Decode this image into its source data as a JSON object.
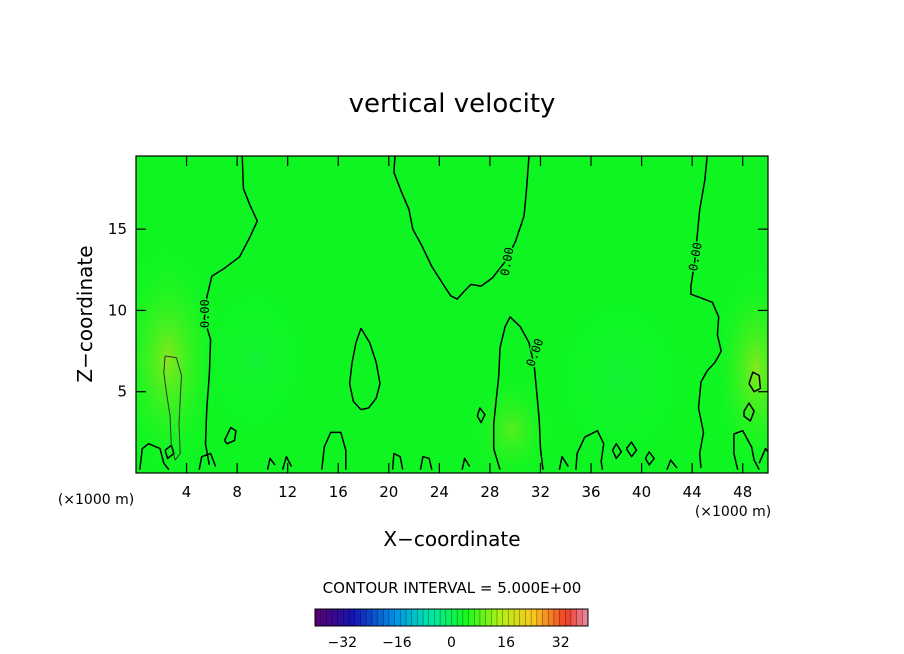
{
  "chart_data": {
    "type": "heatmap",
    "title": "vertical velocity",
    "xlabel": "X−coordinate",
    "ylabel": "Z−coordinate",
    "x_unit_left": "(×1000 m)",
    "x_unit_right": "(×1000 m)",
    "xlim": [
      0,
      50
    ],
    "ylim": [
      0,
      19.5
    ],
    "x_ticks": [
      4,
      8,
      12,
      16,
      20,
      24,
      28,
      32,
      36,
      40,
      44,
      48
    ],
    "y_ticks": [
      5,
      10,
      15
    ],
    "contour_interval_text": "CONTOUR INTERVAL = 5.000E+00",
    "contour_labels": [
      {
        "text": "0.00",
        "x": 5.5,
        "z": 9.8,
        "angle": -90
      },
      {
        "text": "0.00",
        "x": 29.4,
        "z": 13.0,
        "angle": -80
      },
      {
        "text": "0.00",
        "x": 31.6,
        "z": 7.4,
        "angle": -70
      },
      {
        "text": "0.00",
        "x": 44.3,
        "z": 13.3,
        "angle": -80
      }
    ],
    "zero_contours": [
      [
        [
          8.4,
          19.6
        ],
        [
          8.5,
          17.5
        ],
        [
          9.0,
          16.5
        ],
        [
          9.6,
          15.5
        ],
        [
          9.0,
          14.5
        ],
        [
          8.2,
          13.3
        ],
        [
          7.0,
          12.6
        ],
        [
          6.0,
          12.1
        ],
        [
          5.6,
          10.8
        ],
        [
          5.4,
          9.5
        ],
        [
          5.9,
          8.2
        ],
        [
          5.8,
          6.0
        ],
        [
          5.6,
          4.0
        ],
        [
          5.5,
          1.8
        ],
        [
          5.8,
          0.5
        ]
      ],
      [
        [
          20.5,
          19.6
        ],
        [
          20.4,
          18.5
        ],
        [
          21.0,
          17.3
        ],
        [
          21.6,
          16.2
        ],
        [
          21.9,
          15.0
        ],
        [
          22.6,
          14.0
        ],
        [
          23.4,
          12.7
        ],
        [
          24.3,
          11.6
        ],
        [
          24.9,
          10.9
        ],
        [
          25.4,
          10.7
        ],
        [
          26.0,
          11.2
        ],
        [
          26.5,
          11.6
        ],
        [
          27.3,
          11.5
        ],
        [
          28.2,
          12.0
        ],
        [
          29.2,
          13.0
        ],
        [
          30.0,
          14.2
        ],
        [
          30.7,
          15.8
        ],
        [
          30.9,
          17.5
        ],
        [
          31.1,
          19.6
        ]
      ],
      [
        [
          45.2,
          19.6
        ],
        [
          45.0,
          18.0
        ],
        [
          44.6,
          16.2
        ],
        [
          44.4,
          14.6
        ],
        [
          44.2,
          13.0
        ],
        [
          43.9,
          11.5
        ],
        [
          43.9,
          11.0
        ],
        [
          44.6,
          10.8
        ],
        [
          45.6,
          10.5
        ],
        [
          46.1,
          9.6
        ],
        [
          46.0,
          8.5
        ],
        [
          46.3,
          7.5
        ],
        [
          45.8,
          6.8
        ],
        [
          45.2,
          6.3
        ],
        [
          44.7,
          5.6
        ],
        [
          44.5,
          4.0
        ],
        [
          44.9,
          2.5
        ],
        [
          44.6,
          1.2
        ],
        [
          44.7,
          0.3
        ]
      ],
      [
        [
          17.8,
          8.9
        ],
        [
          18.5,
          8.0
        ],
        [
          19.0,
          6.8
        ],
        [
          19.3,
          5.5
        ],
        [
          19.0,
          4.6
        ],
        [
          18.4,
          4.0
        ],
        [
          17.8,
          3.9
        ],
        [
          17.2,
          4.4
        ],
        [
          16.9,
          5.5
        ],
        [
          17.1,
          6.8
        ],
        [
          17.4,
          8.0
        ],
        [
          17.8,
          8.9
        ]
      ],
      [
        [
          28.8,
          0.2
        ],
        [
          28.3,
          1.5
        ],
        [
          28.3,
          3.0
        ],
        [
          28.5,
          4.5
        ],
        [
          28.7,
          6.0
        ],
        [
          28.8,
          7.7
        ],
        [
          29.2,
          9.0
        ],
        [
          29.6,
          9.6
        ],
        [
          30.4,
          9.0
        ],
        [
          31.1,
          8.0
        ],
        [
          31.5,
          6.6
        ],
        [
          31.7,
          5.0
        ],
        [
          31.9,
          3.3
        ],
        [
          32.0,
          1.5
        ],
        [
          32.2,
          0.2
        ]
      ],
      [
        [
          34.8,
          0.2
        ],
        [
          34.9,
          1.2
        ],
        [
          35.5,
          2.2
        ],
        [
          36.5,
          2.6
        ],
        [
          37.0,
          1.8
        ],
        [
          36.8,
          0.7
        ],
        [
          36.9,
          0.2
        ]
      ],
      [
        [
          14.7,
          0.2
        ],
        [
          14.9,
          1.6
        ],
        [
          15.4,
          2.5
        ],
        [
          16.2,
          2.5
        ],
        [
          16.6,
          1.4
        ],
        [
          16.6,
          0.2
        ]
      ],
      [
        [
          0.3,
          0.2
        ],
        [
          0.5,
          1.5
        ],
        [
          1.0,
          1.8
        ],
        [
          1.9,
          1.5
        ],
        [
          2.2,
          0.6
        ],
        [
          2.6,
          0.2
        ]
      ],
      [
        [
          5.0,
          0.2
        ],
        [
          5.2,
          1.0
        ],
        [
          5.9,
          1.2
        ],
        [
          6.3,
          0.4
        ]
      ],
      [
        [
          7.0,
          2.0
        ],
        [
          7.5,
          2.8
        ],
        [
          7.9,
          2.6
        ],
        [
          7.8,
          2.0
        ],
        [
          7.2,
          1.8
        ],
        [
          7.0,
          2.0
        ]
      ],
      [
        [
          47.6,
          0.2
        ],
        [
          47.3,
          1.2
        ],
        [
          47.3,
          2.4
        ],
        [
          48.0,
          2.6
        ],
        [
          48.7,
          1.6
        ],
        [
          48.9,
          0.8
        ],
        [
          49.3,
          0.2
        ]
      ],
      [
        [
          49.3,
          0.6
        ],
        [
          49.8,
          1.5
        ],
        [
          50.0,
          1.3
        ]
      ],
      [
        [
          48.5,
          5.5
        ],
        [
          48.8,
          6.2
        ],
        [
          49.3,
          6.0
        ],
        [
          49.4,
          5.2
        ],
        [
          48.9,
          5.0
        ],
        [
          48.5,
          5.5
        ]
      ],
      [
        [
          48.1,
          3.8
        ],
        [
          48.5,
          4.3
        ],
        [
          48.9,
          3.8
        ],
        [
          48.6,
          3.2
        ],
        [
          48.1,
          3.5
        ],
        [
          48.1,
          3.8
        ]
      ],
      [
        [
          27.0,
          3.5
        ],
        [
          27.2,
          4.0
        ],
        [
          27.6,
          3.6
        ],
        [
          27.3,
          3.1
        ],
        [
          27.0,
          3.5
        ]
      ],
      [
        [
          37.7,
          1.4
        ],
        [
          38.0,
          1.8
        ],
        [
          38.4,
          1.3
        ],
        [
          38.0,
          0.9
        ],
        [
          37.7,
          1.4
        ]
      ],
      [
        [
          38.8,
          1.5
        ],
        [
          39.2,
          1.9
        ],
        [
          39.6,
          1.4
        ],
        [
          39.2,
          1.0
        ],
        [
          38.8,
          1.5
        ]
      ],
      [
        [
          40.3,
          0.9
        ],
        [
          40.6,
          1.3
        ],
        [
          41.0,
          0.9
        ],
        [
          40.6,
          0.5
        ],
        [
          40.3,
          0.9
        ]
      ],
      [
        [
          2.3,
          1.4
        ],
        [
          2.8,
          1.7
        ],
        [
          3.0,
          1.2
        ],
        [
          2.5,
          0.9
        ],
        [
          2.3,
          1.4
        ]
      ],
      [
        [
          10.4,
          0.2
        ],
        [
          10.6,
          0.9
        ],
        [
          11.0,
          0.5
        ]
      ],
      [
        [
          11.6,
          0.2
        ],
        [
          11.9,
          1.0
        ],
        [
          12.3,
          0.4
        ]
      ],
      [
        [
          20.3,
          0.2
        ],
        [
          20.4,
          1.2
        ],
        [
          20.9,
          1.0
        ],
        [
          21.1,
          0.2
        ]
      ],
      [
        [
          22.5,
          0.2
        ],
        [
          22.7,
          1.0
        ],
        [
          23.2,
          0.9
        ],
        [
          23.4,
          0.2
        ]
      ],
      [
        [
          25.8,
          0.2
        ],
        [
          26.0,
          0.9
        ],
        [
          26.4,
          0.4
        ]
      ],
      [
        [
          33.5,
          0.2
        ],
        [
          33.7,
          1.0
        ],
        [
          34.2,
          0.4
        ]
      ],
      [
        [
          42.0,
          0.2
        ],
        [
          42.3,
          0.8
        ],
        [
          42.8,
          0.3
        ]
      ]
    ],
    "positive_contours": [
      [
        [
          2.3,
          7.2
        ],
        [
          3.2,
          7.1
        ],
        [
          3.6,
          6.0
        ],
        [
          3.5,
          4.5
        ],
        [
          3.4,
          3.0
        ],
        [
          3.5,
          1.2
        ],
        [
          3.1,
          0.8
        ],
        [
          2.8,
          1.6
        ],
        [
          2.7,
          3.5
        ],
        [
          2.4,
          5.0
        ],
        [
          2.2,
          6.2
        ],
        [
          2.3,
          7.2
        ]
      ]
    ],
    "colorbar": {
      "ticks": [
        -32,
        -16,
        0,
        16,
        32
      ],
      "tick_labels": [
        "−32",
        "−16",
        "0",
        "16",
        "32"
      ],
      "range": [
        -40,
        40
      ],
      "n_bands": 48
    }
  }
}
